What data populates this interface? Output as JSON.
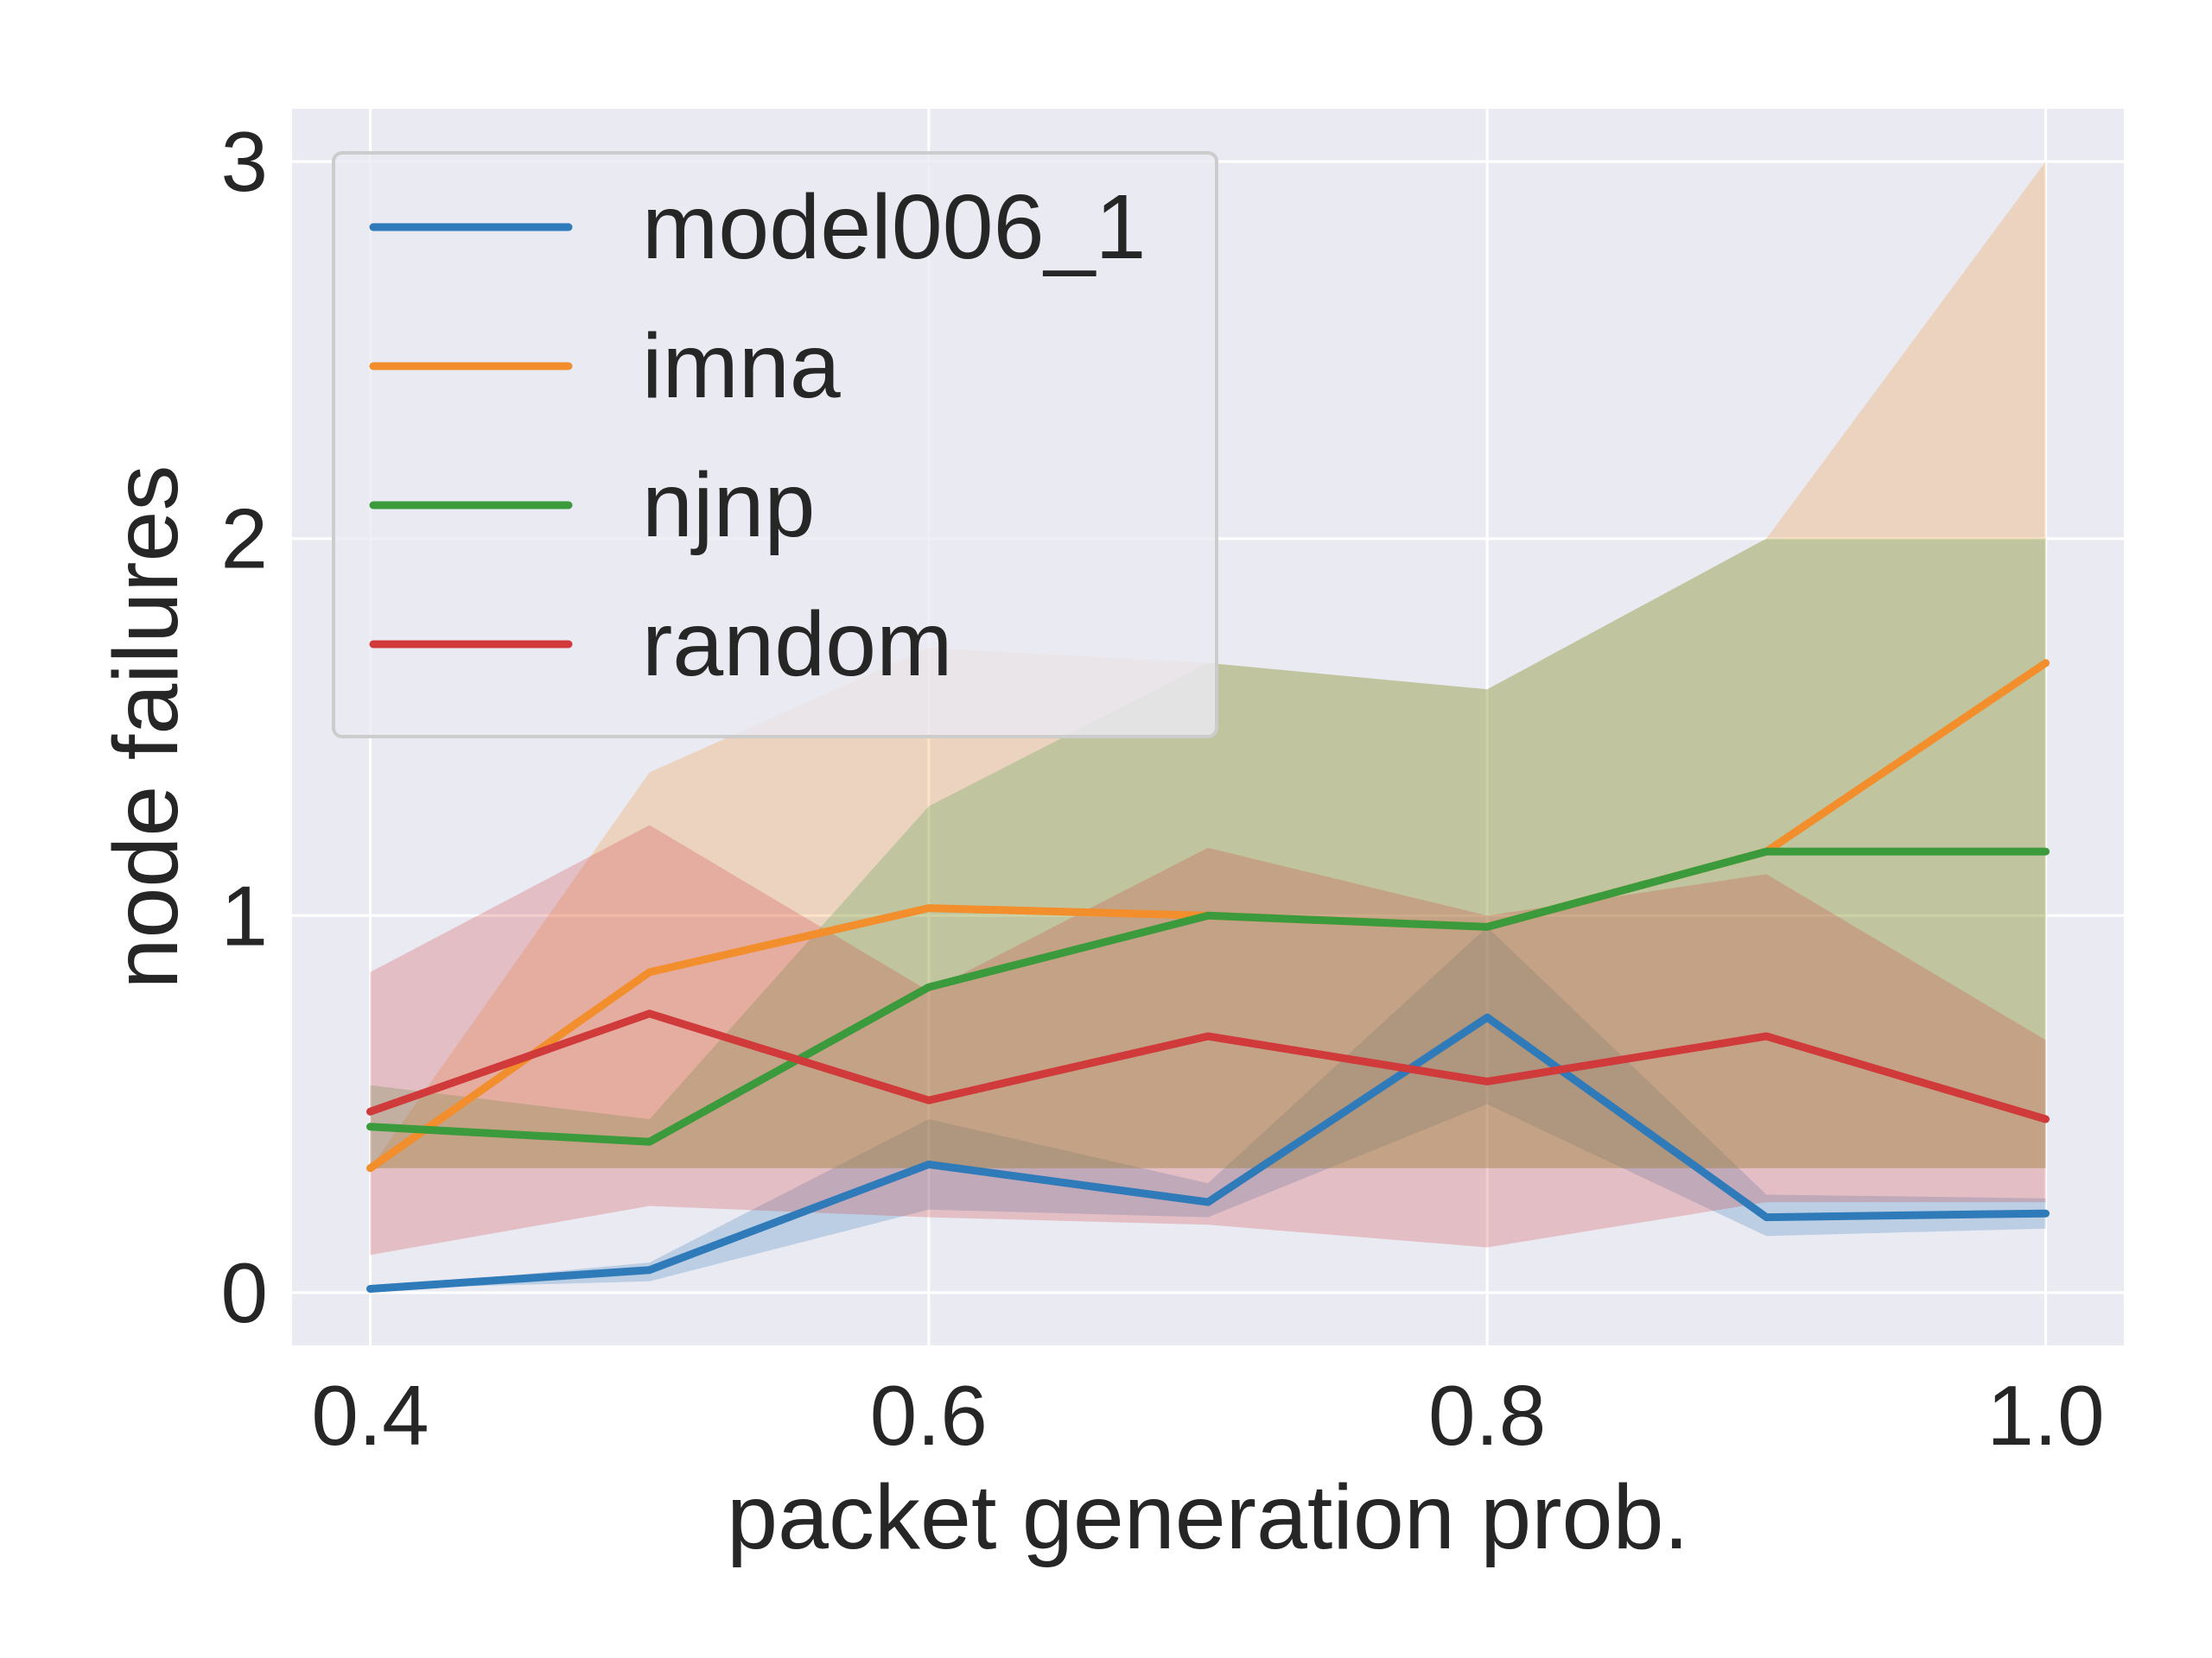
{
  "chart_data": {
    "type": "line",
    "title": "",
    "xlabel": "packet generation prob.",
    "ylabel": "node failures",
    "x": [
      0.4,
      0.5,
      0.6,
      0.7,
      0.8,
      0.9,
      1.0
    ],
    "xlim": [
      0.372,
      1.028
    ],
    "ylim": [
      -0.14,
      3.14
    ],
    "xticks": [
      0.4,
      0.6,
      0.8,
      1.0
    ],
    "xtick_labels": [
      "0.4",
      "0.6",
      "0.8",
      "1.0"
    ],
    "yticks": [
      0,
      1,
      2,
      3
    ],
    "ytick_labels": [
      "0",
      "1",
      "2",
      "3"
    ],
    "grid": true,
    "legend_position": "top-left",
    "series": [
      {
        "name": "model006_1",
        "color": "#2f7ab9",
        "values": [
          0.01,
          0.06,
          0.34,
          0.24,
          0.73,
          0.2,
          0.21
        ],
        "ci_low": [
          0.01,
          0.03,
          0.22,
          0.2,
          0.5,
          0.15,
          0.17
        ],
        "ci_high": [
          0.01,
          0.08,
          0.46,
          0.29,
          0.97,
          0.26,
          0.25
        ]
      },
      {
        "name": "imna",
        "color": "#f28e2b",
        "values": [
          0.33,
          0.85,
          1.02,
          1.0,
          0.97,
          1.17,
          1.67
        ],
        "ci_low": [
          0.33,
          0.33,
          0.33,
          0.33,
          0.33,
          0.33,
          0.33
        ],
        "ci_high": [
          0.33,
          1.38,
          1.71,
          1.67,
          1.6,
          2.0,
          3.0
        ]
      },
      {
        "name": "njnp",
        "color": "#3b9a3b",
        "values": [
          0.44,
          0.4,
          0.81,
          1.0,
          0.97,
          1.17,
          1.17
        ],
        "ci_low": [
          0.33,
          0.33,
          0.33,
          0.33,
          0.33,
          0.33,
          0.33
        ],
        "ci_high": [
          0.55,
          0.46,
          1.29,
          1.67,
          1.6,
          2.0,
          2.0
        ]
      },
      {
        "name": "random",
        "color": "#d03a3a",
        "values": [
          0.48,
          0.74,
          0.51,
          0.68,
          0.56,
          0.68,
          0.46
        ],
        "ci_low": [
          0.1,
          0.23,
          0.2,
          0.18,
          0.12,
          0.24,
          0.24
        ],
        "ci_high": [
          0.85,
          1.24,
          0.8,
          1.18,
          1.0,
          1.11,
          0.67
        ]
      }
    ]
  }
}
